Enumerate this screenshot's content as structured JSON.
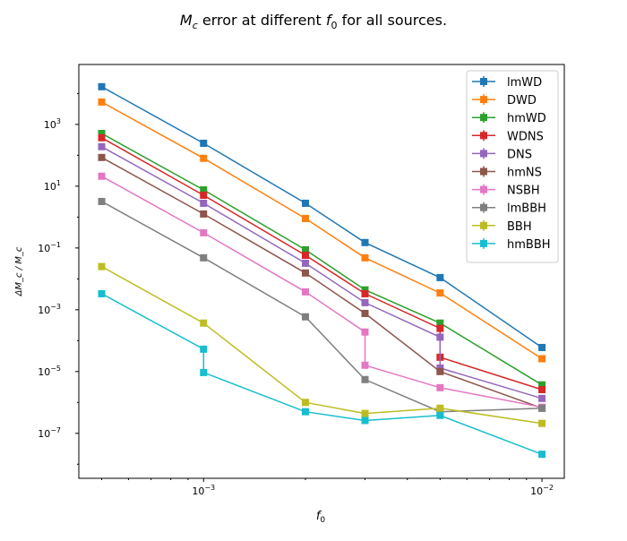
{
  "chart_data": {
    "type": "line",
    "title": "M_c error at different f_0 for all sources.",
    "title_parts": {
      "pre": "M",
      "sub": "c",
      "mid": " error at different ",
      "f": "f",
      "fsub": "0",
      "post": " for all sources."
    },
    "xlabel": "f_0",
    "ylabel": "ΔM_c / M_c",
    "xscale": "log",
    "yscale": "log",
    "xlim": [
      0.000428,
      0.01164
    ],
    "ylim": [
      3.5e-09,
      87000.0
    ],
    "xticks": [
      {
        "v": 0.001,
        "label": "10",
        "exp": "−3"
      },
      {
        "v": 0.01,
        "label": "10",
        "exp": "−2"
      }
    ],
    "yticks": [
      {
        "v": 1000.0,
        "label": "10",
        "exp": "3"
      },
      {
        "v": 10.0,
        "label": "10",
        "exp": "1"
      },
      {
        "v": 0.1,
        "label": "10",
        "exp": "−1"
      },
      {
        "v": 0.001,
        "label": "10",
        "exp": "−3"
      },
      {
        "v": 1e-05,
        "label": "10",
        "exp": "−5"
      },
      {
        "v": 1e-07,
        "label": "10",
        "exp": "−7"
      }
    ],
    "legend_position": "top-right",
    "series": [
      {
        "name": "lmWD",
        "color": "#1f77b4",
        "x": [
          0.0005,
          0.001,
          0.002,
          0.003,
          0.005,
          0.01
        ],
        "y": [
          16600.0,
          245,
          2.8,
          0.15,
          0.011,
          6e-05
        ]
      },
      {
        "name": "DWD",
        "color": "#ff7f0e",
        "x": [
          0.0005,
          0.001,
          0.002,
          0.003,
          0.005,
          0.01
        ],
        "y": [
          5300.0,
          80,
          0.9,
          0.048,
          0.0035,
          2.6e-05
        ]
      },
      {
        "name": "hmWD",
        "color": "#2ca02c",
        "x": [
          0.0005,
          0.001,
          0.002,
          0.003,
          0.005,
          0.01
        ],
        "y": [
          510,
          7.6,
          0.087,
          0.0044,
          0.00037,
          3.7e-06
        ]
      },
      {
        "name": "WDNS",
        "color": "#d62728",
        "x": [
          0.0005,
          0.001,
          0.002,
          0.003,
          0.005,
          0.005,
          0.01
        ],
        "y": [
          370,
          5.1,
          0.058,
          0.0033,
          0.00025,
          2.9e-05,
          2.6e-06
        ]
      },
      {
        "name": "DNS",
        "color": "#9467bd",
        "x": [
          0.0005,
          0.001,
          0.002,
          0.003,
          0.005,
          0.005,
          0.01
        ],
        "y": [
          190,
          2.8,
          0.032,
          0.0017,
          0.00013,
          1.3e-05,
          1.35e-06
        ]
      },
      {
        "name": "hmNS",
        "color": "#8c564b",
        "x": [
          0.0005,
          0.001,
          0.002,
          0.003,
          0.005,
          0.01
        ],
        "y": [
          85,
          1.26,
          0.0155,
          0.00076,
          1e-05,
          6.5e-07
        ]
      },
      {
        "name": "NSBH",
        "color": "#e377c2",
        "x": [
          0.0005,
          0.001,
          0.002,
          0.003,
          0.003,
          0.005,
          0.01
        ],
        "y": [
          21,
          0.31,
          0.0038,
          0.00019,
          1.6e-05,
          3e-06,
          7e-07
        ]
      },
      {
        "name": "lmBBH",
        "color": "#7f7f7f",
        "x": [
          0.0005,
          0.001,
          0.002,
          0.003,
          0.005,
          0.01
        ],
        "y": [
          3.2,
          0.048,
          0.00059,
          5.5e-06,
          5e-07,
          6.5e-07
        ]
      },
      {
        "name": "BBH",
        "color": "#bcbd22",
        "x": [
          0.0005,
          0.001,
          0.002,
          0.003,
          0.005,
          0.01
        ],
        "y": [
          0.025,
          0.00037,
          1e-06,
          4.4e-07,
          6.5e-07,
          2.1e-07
        ]
      },
      {
        "name": "hmBBH",
        "color": "#17becf",
        "x": [
          0.0005,
          0.001,
          0.001,
          0.002,
          0.003,
          0.005,
          0.01
        ],
        "y": [
          0.0033,
          5.3e-05,
          9.3e-06,
          5e-07,
          2.6e-07,
          3.8e-07,
          2.1e-08
        ]
      }
    ]
  }
}
